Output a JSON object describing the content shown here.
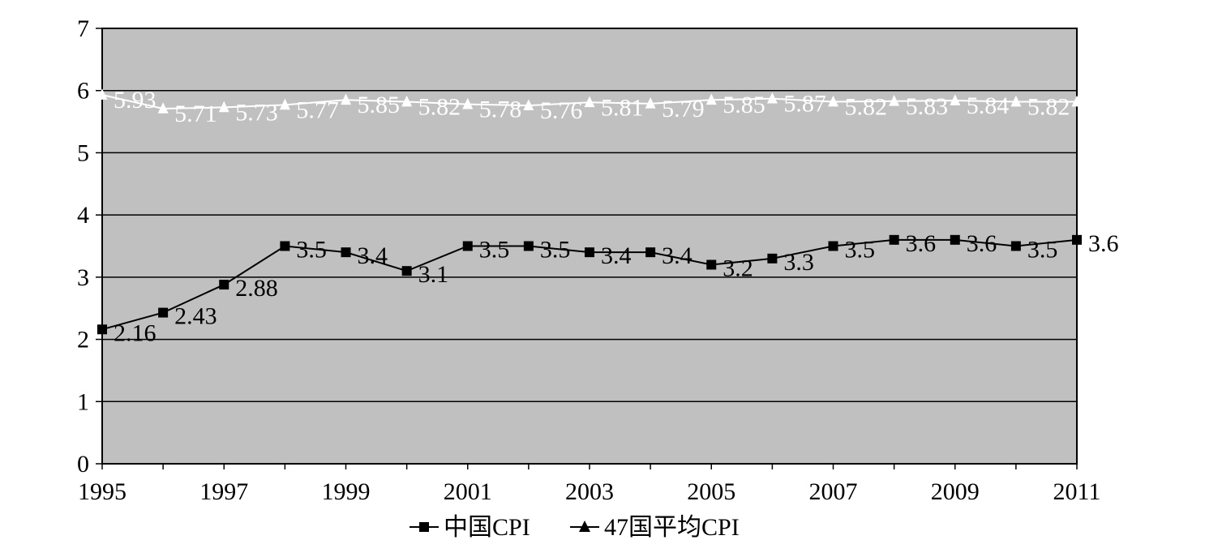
{
  "chart_data": {
    "type": "line",
    "x": [
      1995,
      1996,
      1997,
      1998,
      1999,
      2000,
      2001,
      2002,
      2003,
      2004,
      2005,
      2006,
      2007,
      2008,
      2009,
      2010,
      2011
    ],
    "x_tick_labels": [
      "1995",
      "1997",
      "1999",
      "2001",
      "2003",
      "2005",
      "2007",
      "2009",
      "2011"
    ],
    "y_tick_labels": [
      "0",
      "1",
      "2",
      "3",
      "4",
      "5",
      "6",
      "7"
    ],
    "ylim": [
      0,
      7
    ],
    "xlim": [
      1995,
      2011
    ],
    "grid": "horizontal",
    "legend_position": "bottom",
    "plot_background": "#c0c0c0",
    "series": [
      {
        "name": "中国CPI",
        "marker": "square",
        "color": "#000000",
        "values": [
          2.16,
          2.43,
          2.88,
          3.5,
          3.4,
          3.1,
          3.5,
          3.5,
          3.4,
          3.4,
          3.2,
          3.3,
          3.5,
          3.6,
          3.6,
          3.5,
          3.6
        ],
        "labels": [
          "2.16",
          "2.43",
          "2.88",
          "3.5",
          "3.4",
          "3.1",
          "3.5",
          "3.5",
          "3.4",
          "3.4",
          "3.2",
          "3.3",
          "3.5",
          "3.6",
          "3.6",
          "3.5",
          "3.6"
        ]
      },
      {
        "name": "47国平均CPI",
        "marker": "triangle",
        "color": "#ffffff",
        "values": [
          5.93,
          5.71,
          5.73,
          5.77,
          5.85,
          5.82,
          5.78,
          5.76,
          5.81,
          5.79,
          5.85,
          5.87,
          5.82,
          5.83,
          5.84,
          5.82,
          5.82
        ],
        "labels": [
          "5.93",
          "5.71",
          "5.73",
          "5.77",
          "5.85",
          "5.82",
          "5.78",
          "5.76",
          "5.81",
          "5.79",
          "5.85",
          "5.87",
          "5.82",
          "5.83",
          "5.84",
          "5.82",
          "5.82"
        ]
      }
    ]
  }
}
